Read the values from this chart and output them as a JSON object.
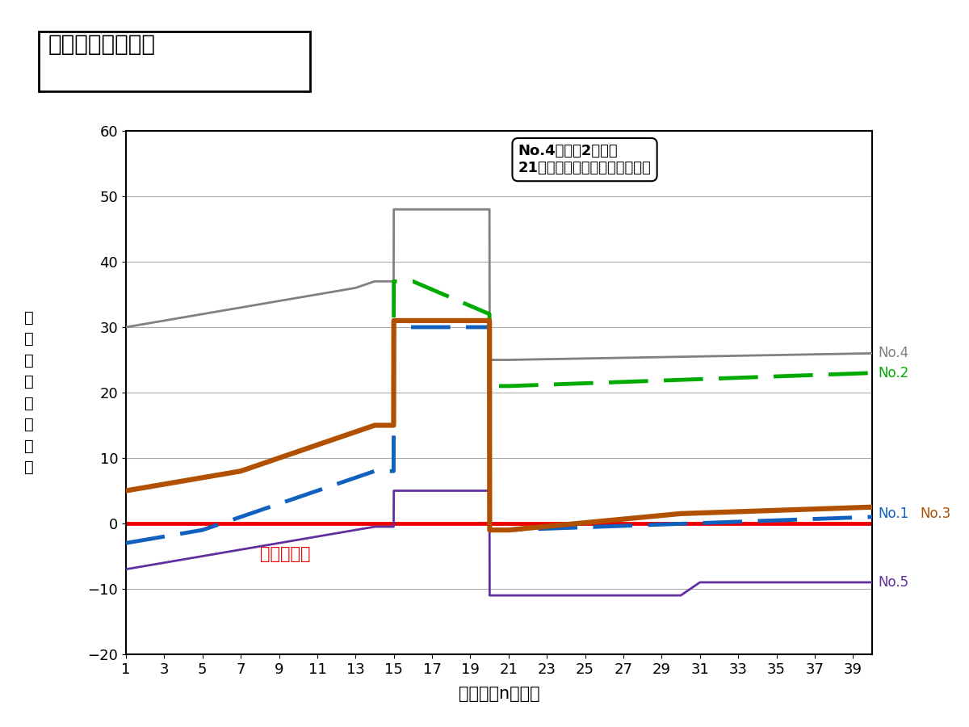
{
  "title": "経常利益率の推移",
  "xlabel": "事業開始n年度目",
  "ylabel": "経\n常\n利\n益\n率\n（\n％\n）",
  "xlim": [
    1,
    40
  ],
  "ylim": [
    -20,
    60
  ],
  "yticks": [
    -20,
    -10,
    0,
    10,
    20,
    30,
    40,
    50,
    60
  ],
  "xticks": [
    1,
    3,
    5,
    7,
    9,
    11,
    13,
    15,
    17,
    19,
    21,
    23,
    25,
    27,
    29,
    31,
    33,
    35,
    37,
    39
  ],
  "annotation_text": "No.4および2のみが\n21年目以降も高い採算性を維持",
  "akaji_label": "赤字ライン",
  "no4_label": "No.4",
  "no2_label": "No.2",
  "no1_label": "No.1",
  "no3_label": "No.3",
  "no5_label": "No.5",
  "no4_color": "#808080",
  "no2_color": "#00aa00",
  "no3_color": "#b05000",
  "no1_color": "#1060c0",
  "no5_color": "#6030a0",
  "red_color": "#ee0000",
  "no4_data_x": [
    1,
    2,
    3,
    4,
    5,
    6,
    7,
    8,
    9,
    10,
    11,
    12,
    13,
    14,
    14.99,
    15,
    20,
    20.01,
    21,
    40
  ],
  "no4_data_y": [
    30,
    30.5,
    31,
    31.5,
    32,
    32.5,
    33,
    33.5,
    34,
    34.5,
    35,
    35.5,
    36,
    37,
    37,
    48,
    48,
    25,
    25,
    26
  ],
  "no2_data_x": [
    1,
    2,
    3,
    4,
    5,
    6,
    7,
    8,
    9,
    10,
    11,
    12,
    13,
    14,
    14.99,
    15,
    16,
    20,
    20.01,
    21,
    40
  ],
  "no2_data_y": [
    5,
    5.5,
    6,
    6.5,
    7,
    7.5,
    8,
    9,
    10,
    11,
    12,
    13,
    14,
    15,
    15,
    37,
    37,
    32,
    21,
    21,
    23
  ],
  "no3_data_x": [
    1,
    2,
    3,
    4,
    5,
    6,
    7,
    8,
    9,
    10,
    11,
    12,
    13,
    14,
    14.99,
    15,
    20,
    20.01,
    21,
    30,
    40
  ],
  "no3_data_y": [
    5,
    5.5,
    6,
    6.5,
    7,
    7.5,
    8,
    9,
    10,
    11,
    12,
    13,
    14,
    15,
    15,
    31,
    31,
    -1,
    -1,
    1.5,
    2.5
  ],
  "no1_data_x": [
    1,
    2,
    3,
    4,
    5,
    6,
    7,
    8,
    9,
    10,
    11,
    12,
    13,
    14,
    14.99,
    15,
    20,
    20.01,
    21,
    40
  ],
  "no1_data_y": [
    -3,
    -2.5,
    -2,
    -1.5,
    -1,
    0,
    1,
    2,
    3,
    4,
    5,
    6,
    7,
    8,
    8,
    30,
    30,
    -1,
    -1,
    1
  ],
  "no5_data_x": [
    1,
    2,
    3,
    4,
    5,
    6,
    7,
    8,
    9,
    10,
    11,
    12,
    13,
    14,
    14.99,
    15,
    20,
    20.01,
    21,
    30,
    31,
    40
  ],
  "no5_data_y": [
    -7,
    -6.5,
    -6,
    -5.5,
    -5,
    -4.5,
    -4,
    -3.5,
    -3,
    -2.5,
    -2,
    -1.5,
    -1,
    -0.5,
    -0.5,
    5,
    5,
    -11,
    -11,
    -11,
    -9,
    -9
  ]
}
